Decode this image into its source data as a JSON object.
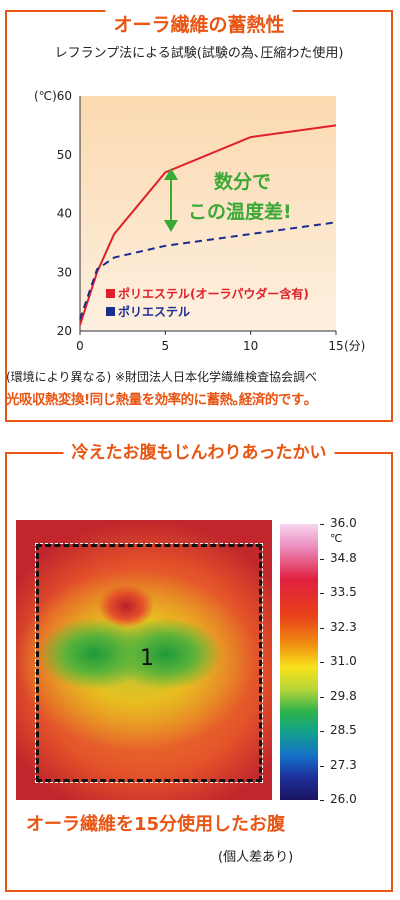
{
  "panel1": {
    "title": "オーラ繊維の蓄熱性",
    "subtitle": "レフランプ法による試験(試験の為､圧縮わた使用)",
    "note": "(環境により異なる) ※財団法人日本化学繊維検査協会調べ",
    "tagline": "光吸収熱変換!同じ熱量を効率的に蓄熱｡経済的です｡"
  },
  "chart_data": {
    "type": "line",
    "ylabel": "(℃)",
    "xlabel": "(分)",
    "xlim": [
      0,
      15
    ],
    "ylim": [
      20,
      60
    ],
    "xticks": [
      0,
      5,
      10,
      15
    ],
    "yticks": [
      20,
      30,
      40,
      50,
      60
    ],
    "annotation": [
      "数分で",
      "この温度差!"
    ],
    "series": [
      {
        "name": "ポリエステル(オーラパウダー含有)",
        "color": "#e02027",
        "style": "solid",
        "x": [
          0,
          1,
          2,
          5,
          10,
          15
        ],
        "y": [
          21,
          30,
          36.5,
          47,
          53,
          55
        ]
      },
      {
        "name": "ポリエステル",
        "color": "#1d2c8f",
        "style": "dashed",
        "x": [
          0,
          1,
          2,
          5,
          10,
          15
        ],
        "y": [
          22,
          30.5,
          32.5,
          34.5,
          36.5,
          38.5
        ]
      }
    ]
  },
  "panel2": {
    "title": "冷えたお腹もじんわりあったかい",
    "region_label": "1",
    "colorbar_unit": "℃",
    "colorbar_labels": [
      "36.0",
      "34.8",
      "33.5",
      "32.3",
      "31.0",
      "29.8",
      "28.5",
      "27.3",
      "26.0"
    ],
    "caption": "オーラ繊維を15分使用したお腹",
    "caption_note": "(個人差あり)"
  }
}
